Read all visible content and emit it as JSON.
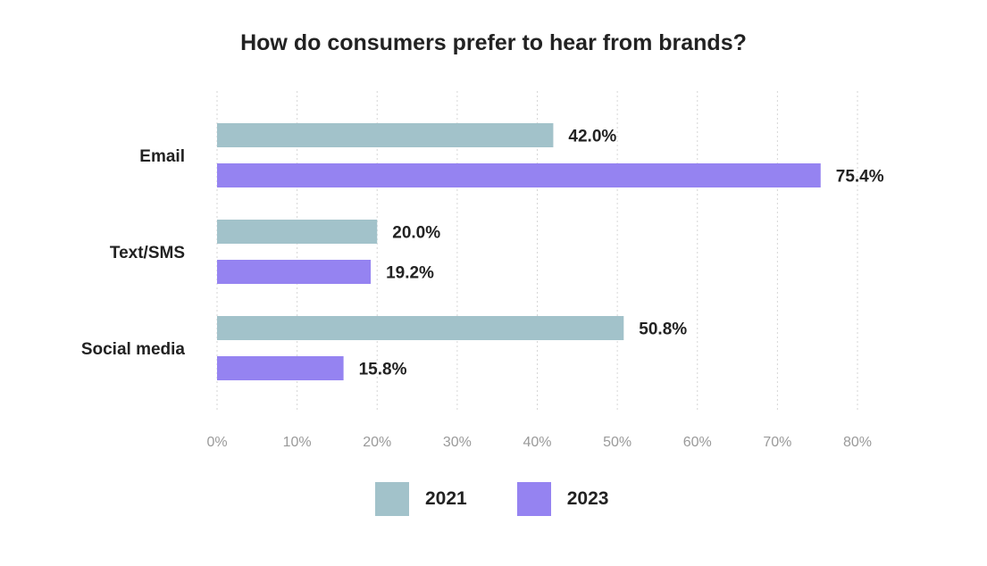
{
  "chart_data": {
    "type": "bar",
    "orientation": "horizontal",
    "title": "How do consumers prefer to hear from brands?",
    "categories": [
      "Email",
      "Text/SMS",
      "Social media"
    ],
    "series": [
      {
        "name": "2021",
        "values": [
          42.0,
          20.0,
          50.8
        ],
        "color": "#a2c2ca"
      },
      {
        "name": "2023",
        "values": [
          75.4,
          19.2,
          15.8
        ],
        "color": "#9583f1"
      }
    ],
    "data_labels": [
      [
        "42.0%",
        "20.0%",
        "50.8%"
      ],
      [
        "75.4%",
        "19.2%",
        "15.8%"
      ]
    ],
    "xlim": [
      0,
      80
    ],
    "xticks": [
      "0%",
      "10%",
      "20%",
      "30%",
      "40%",
      "50%",
      "60%",
      "70%",
      "80%"
    ],
    "grid": "vertical dotted",
    "legend_position": "bottom"
  }
}
